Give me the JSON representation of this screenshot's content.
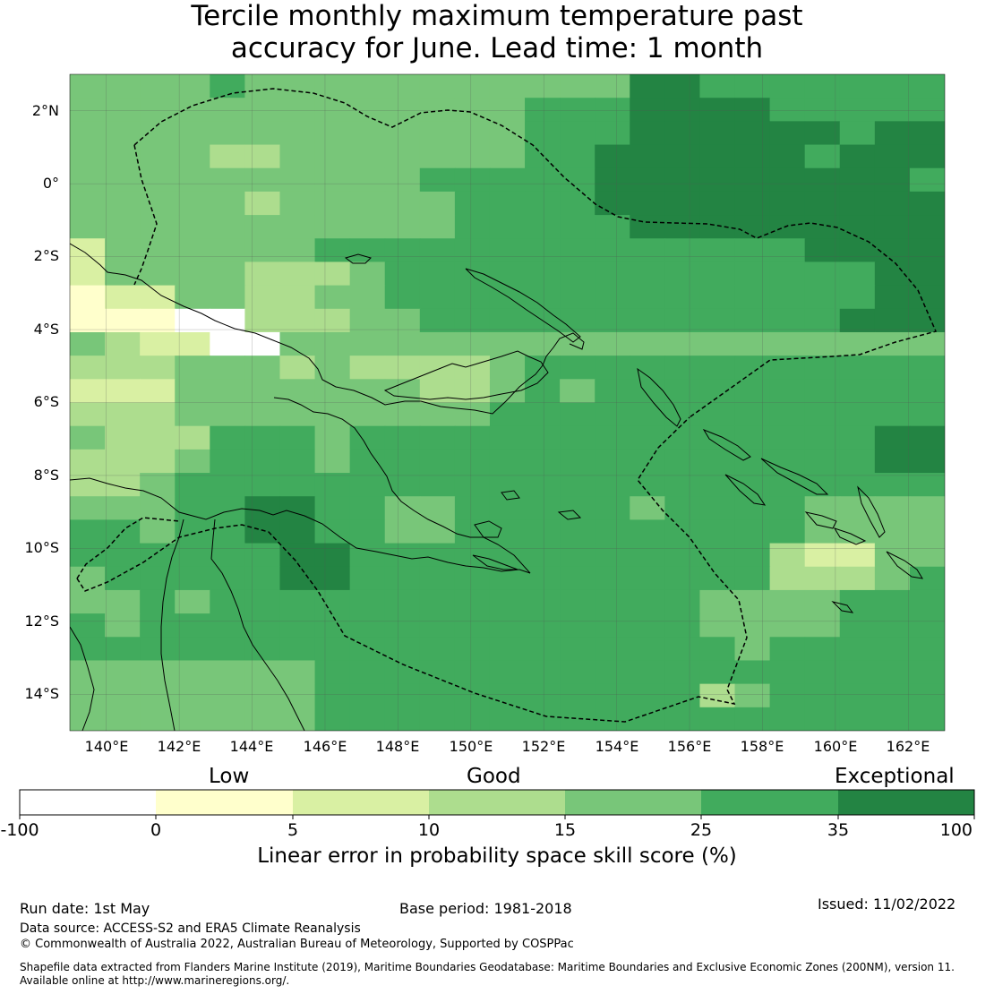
{
  "title": {
    "line1": "Tercile monthly maximum temperature past",
    "line2": "accuracy for June. Lead time: 1 month"
  },
  "axes": {
    "lat_labels": [
      "2°N",
      "0°",
      "2°S",
      "4°S",
      "6°S",
      "8°S",
      "10°S",
      "12°S",
      "14°S"
    ],
    "lon_labels": [
      "140°E",
      "142°E",
      "144°E",
      "146°E",
      "148°E",
      "150°E",
      "152°E",
      "154°E",
      "156°E",
      "158°E",
      "160°E",
      "162°E"
    ]
  },
  "colorbar": {
    "categories": [
      "Low",
      "Good",
      "Exceptional"
    ],
    "ticks": [
      "-100",
      "0",
      "5",
      "10",
      "15",
      "25",
      "35",
      "100"
    ],
    "colors": [
      "#ffffff",
      "#ffffcc",
      "#d9f0a3",
      "#addd8e",
      "#78c679",
      "#41ab5d",
      "#238443"
    ],
    "title": "Linear error in probability space skill score (%)"
  },
  "footer": {
    "run_date": "Run date: 1st May",
    "base_period": "Base period: 1981-2018",
    "issued": "Issued: 11/02/2022",
    "data_source": "Data source: ACCESS-S2 and ERA5 Climate Reanalysis",
    "copyright": "© Commonwealth of Australia 2022, Australian Bureau of Meteorology, Supported by COSPPac",
    "shapefile_line1": "Shapefile data extracted from Flanders Marine Institute (2019), Maritime Boundaries Geodatabase: Maritime Boundaries and Exclusive Economic Zones (200NM), version 11.",
    "shapefile_line2": "Available online at http://www.marineregions.org/."
  },
  "map": {
    "lon_range": [
      139,
      163
    ],
    "lat_range": [
      -15,
      3
    ],
    "grid_rows": [
      "4444544444444444665555555",
      "4444444444444555666655555",
      "4444444444444555666666566",
      "4444334444444556666665666",
      "4444444444555556666666665",
      "4444434444455556666666666",
      "4444444444455555666666666",
      "2444444555555555555556666",
      "2444433345555555555555566",
      "1224433445555555555555566",
      "1110033344555555555555666",
      "4322004444444444444444444",
      "3334443433334555555555555",
      "2224444444334545555555555",
      "3334444444445555555555555",
      "4333555455555555555555566",
      "3334555455555555555555566",
      "3345555555555555555555555",
      "4445566554455555455554444",
      "5545566554455555555554444",
      "5555556655555555555532244",
      "4555556655555555555533345",
      "4454555555555555554444555",
      "5455555555555555554444555",
      "5555555555555555555455555",
      "4444444555555555555555555",
      "4444444555555555553455555",
      "4444444555555555555555555"
    ],
    "classes": [
      "white",
      "lightyellow",
      "yellowgreen",
      "palegreen",
      "green",
      "mediumgreen",
      "darkgreen"
    ]
  }
}
